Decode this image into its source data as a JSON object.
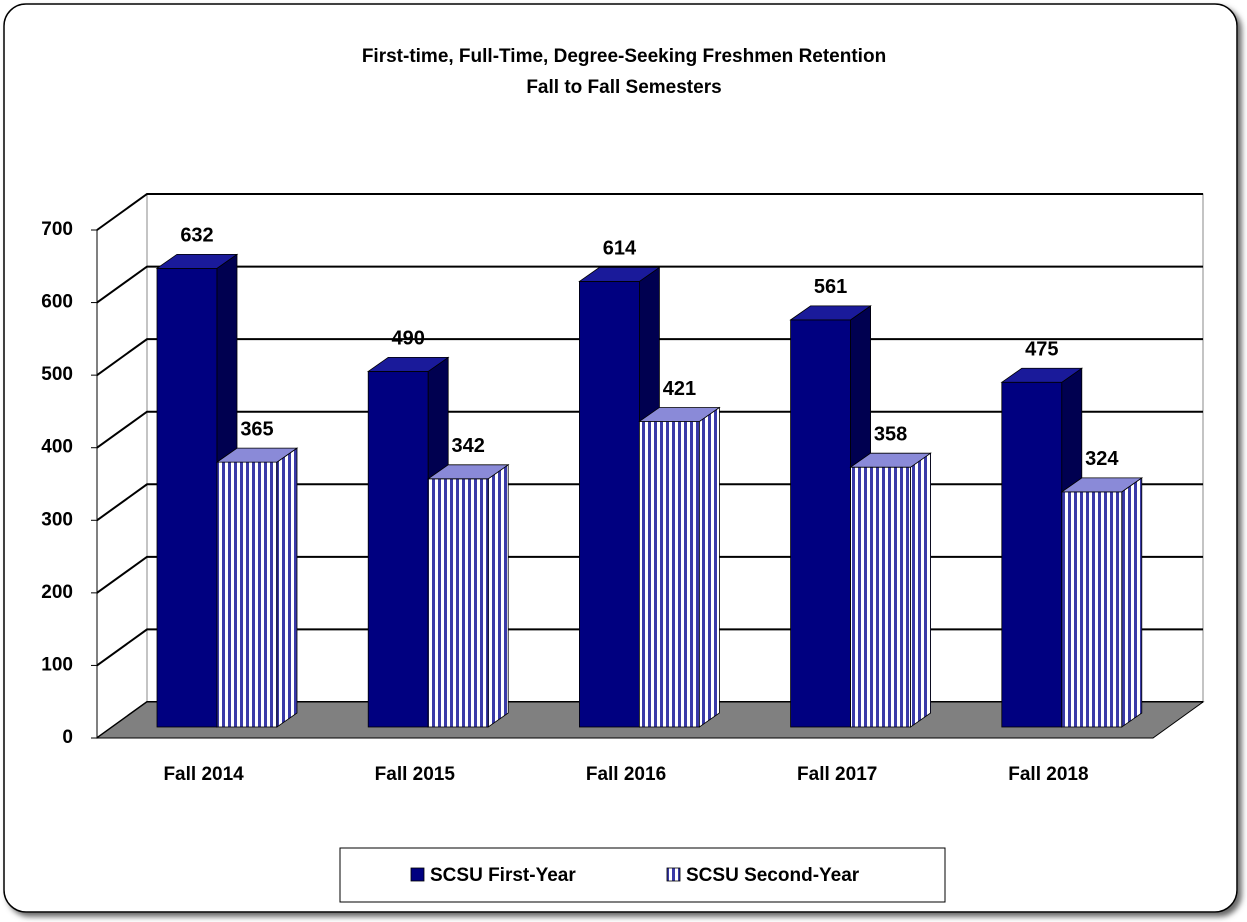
{
  "chart_data": {
    "type": "bar",
    "title": "First-time, Full-Time, Degree-Seeking Freshmen Retention",
    "subtitle": "Fall to Fall Semesters",
    "categories": [
      "Fall 2014",
      "Fall 2015",
      "Fall 2016",
      "Fall 2017",
      "Fall 2018"
    ],
    "series": [
      {
        "name": "SCSU First-Year",
        "color": "#000080",
        "values": [
          632,
          490,
          614,
          561,
          475
        ]
      },
      {
        "name": "SCSU Second-Year",
        "color": "#3a3aa8",
        "values": [
          365,
          342,
          421,
          358,
          324
        ]
      }
    ],
    "ylim": [
      0,
      700
    ],
    "yticks": [
      0,
      100,
      200,
      300,
      400,
      500,
      600,
      700
    ],
    "grid": true
  }
}
